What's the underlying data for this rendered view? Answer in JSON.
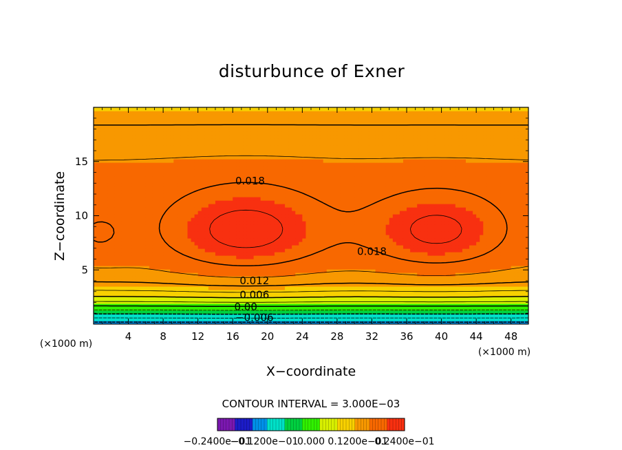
{
  "chart_data": {
    "type": "heatmap",
    "title": "disturbunce of Exner",
    "xlabel": "X−coordinate",
    "ylabel": "Z−coordinate",
    "x_unit": "(×1000 m)",
    "y_unit": "(×1000 m)",
    "xlim": [
      0,
      50
    ],
    "ylim": [
      0,
      20
    ],
    "x_ticks": [
      4,
      8,
      12,
      16,
      20,
      24,
      28,
      32,
      36,
      40,
      44,
      48
    ],
    "y_ticks": [
      5,
      10,
      15
    ],
    "x_tick_labels": [
      "4",
      "8",
      "12",
      "16",
      "20",
      "24",
      "28",
      "32",
      "36",
      "40",
      "44",
      "48"
    ],
    "y_tick_labels": [
      "5",
      "10",
      "15"
    ],
    "contour_interval_text": "CONTOUR INTERVAL = 3.000E−03",
    "contour_interval": 0.003,
    "contour_labels": [
      {
        "text": "0.018",
        "x": 18.0,
        "z": 13.2
      },
      {
        "text": "0.018",
        "x": 32.0,
        "z": 6.7
      },
      {
        "text": "0.012",
        "x": 18.5,
        "z": 4.0
      },
      {
        "text": "0.006",
        "x": 18.5,
        "z": 2.7
      },
      {
        "text": "0.00",
        "x": 17.5,
        "z": 1.6
      },
      {
        "text": "−0.006",
        "x": 18.5,
        "z": 0.6
      }
    ],
    "field_maxima": [
      {
        "x": 17.5,
        "z": 8.5,
        "value": 0.024
      },
      {
        "x": 39.5,
        "z": 8.5,
        "value": 0.024
      }
    ],
    "colorbar": {
      "min": -0.024,
      "max": 0.024,
      "colors": [
        "#7b18b0",
        "#1c1cc8",
        "#0090e8",
        "#00e0c8",
        "#00d040",
        "#30f000",
        "#d8f000",
        "#f8d000",
        "#f89800",
        "#f86800",
        "#f83010"
      ],
      "labels": [
        "−0.2400e−01",
        "−0.1200e−01",
        "0.000",
        "0.1200e−01",
        "0.2400e−01"
      ]
    }
  }
}
